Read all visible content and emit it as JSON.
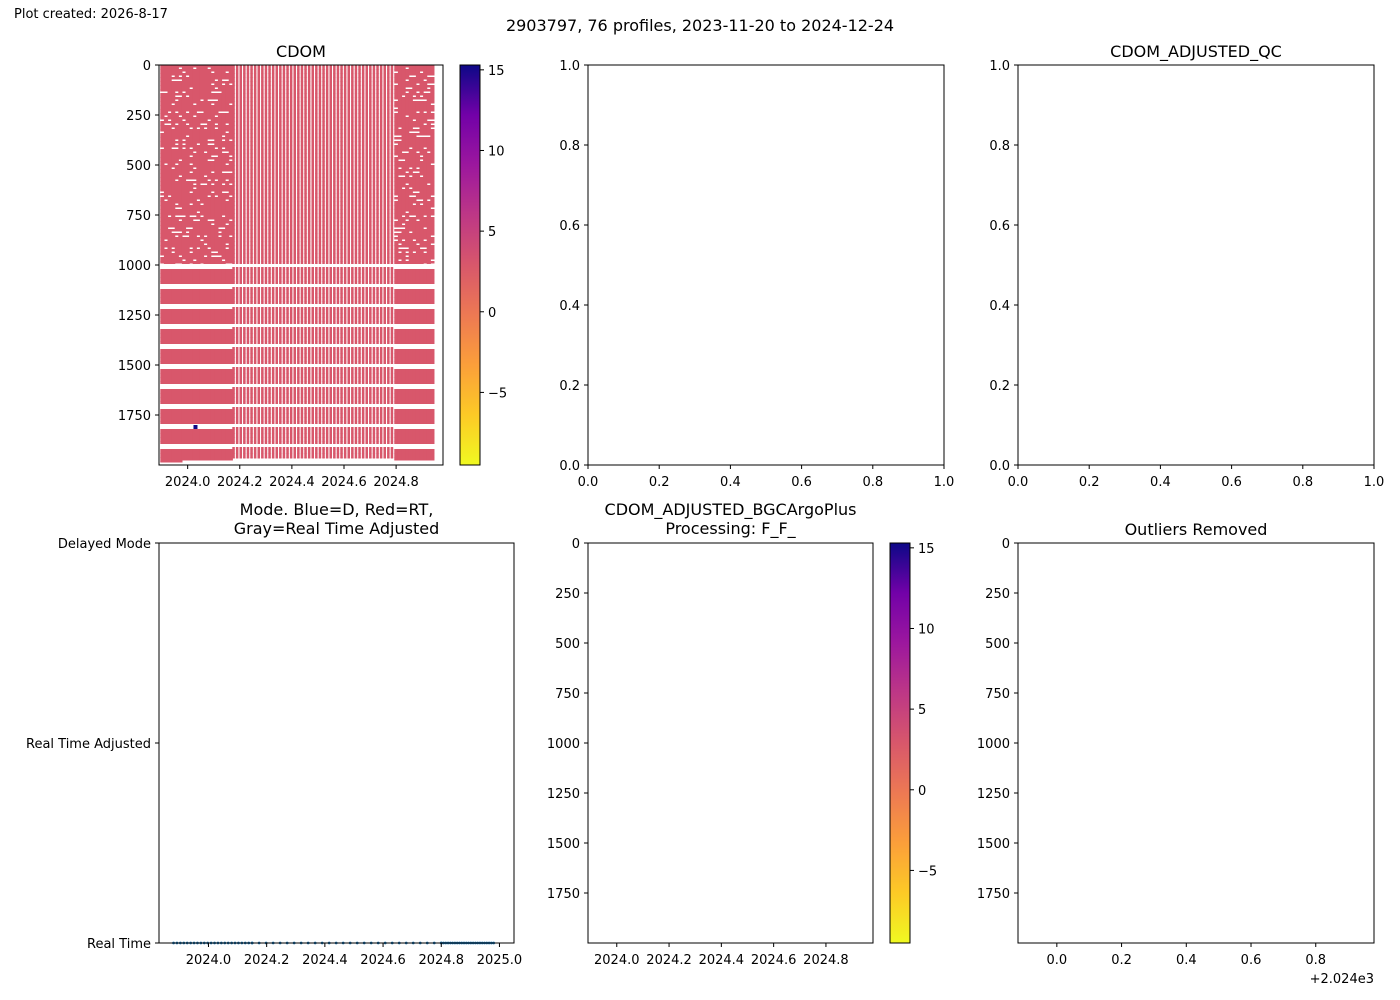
{
  "plot_created": "Plot created: 2026-8-17",
  "suptitle": "2903797, 76 profiles, 2023-11-20 to 2024-12-24",
  "chart_data": [
    {
      "id": "cdom",
      "type": "heatmap",
      "title": "CDOM",
      "x_ticks": [
        "2024.0",
        "2024.2",
        "2024.4",
        "2024.6",
        "2024.8"
      ],
      "x_tick_values": [
        2024.0,
        2024.2,
        2024.4,
        2024.6,
        2024.8
      ],
      "xlim": [
        2023.89,
        2024.98
      ],
      "y_ticks": [
        "0",
        "250",
        "500",
        "750",
        "1000",
        "1250",
        "1500",
        "1750"
      ],
      "y_tick_values": [
        0,
        250,
        500,
        750,
        1000,
        1250,
        1500,
        1750
      ],
      "ylim": [
        2000,
        0
      ],
      "colormap": "plasma_r",
      "dominant_value": 2.5,
      "anomaly": {
        "x": 2024.03,
        "y": 1810,
        "value": 15
      },
      "profiles": 76,
      "colorbar": {
        "ticks": [
          "15",
          "10",
          "5",
          "0",
          "−5"
        ],
        "tick_values": [
          15,
          10,
          5,
          0,
          -5
        ],
        "range": [
          -9.5,
          15.3
        ]
      }
    },
    {
      "id": "empty-top-middle",
      "type": "scatter",
      "title": "",
      "x_ticks": [
        "0.0",
        "0.2",
        "0.4",
        "0.6",
        "0.8",
        "1.0"
      ],
      "x_tick_values": [
        0.0,
        0.2,
        0.4,
        0.6,
        0.8,
        1.0
      ],
      "y_ticks": [
        "0.0",
        "0.2",
        "0.4",
        "0.6",
        "0.8",
        "1.0"
      ],
      "y_tick_values": [
        0.0,
        0.2,
        0.4,
        0.6,
        0.8,
        1.0
      ],
      "xlim": [
        0,
        1
      ],
      "ylim": [
        0,
        1
      ]
    },
    {
      "id": "cdom-adjusted-qc",
      "type": "scatter",
      "title": "CDOM_ADJUSTED_QC",
      "x_ticks": [
        "0.0",
        "0.2",
        "0.4",
        "0.6",
        "0.8",
        "1.0"
      ],
      "x_tick_values": [
        0.0,
        0.2,
        0.4,
        0.6,
        0.8,
        1.0
      ],
      "y_ticks": [
        "0.0",
        "0.2",
        "0.4",
        "0.6",
        "0.8",
        "1.0"
      ],
      "y_tick_values": [
        0.0,
        0.2,
        0.4,
        0.6,
        0.8,
        1.0
      ],
      "xlim": [
        0,
        1
      ],
      "ylim": [
        0,
        1
      ]
    },
    {
      "id": "mode",
      "type": "scatter",
      "title_lines": [
        "Mode. Blue=D, Red=RT,",
        "Gray=Real Time Adjusted"
      ],
      "x_ticks": [
        "2024.0",
        "2024.2",
        "2024.4",
        "2024.6",
        "2024.8",
        "2025.0"
      ],
      "x_tick_values": [
        2024.0,
        2024.2,
        2024.4,
        2024.6,
        2024.8,
        2025.0
      ],
      "xlim": [
        2023.83,
        2025.05
      ],
      "y_ticks": [
        "Delayed Mode",
        "Real Time Adjusted",
        "Real Time"
      ],
      "y_tick_values": [
        2,
        1,
        0
      ],
      "ylim": [
        0,
        2
      ],
      "point_color": "#1f77b4",
      "points_y": 0,
      "points_x_range": [
        2023.88,
        2024.98
      ],
      "point_count": 76
    },
    {
      "id": "cdom-adjusted-bgc",
      "type": "heatmap",
      "title_lines": [
        "CDOM_ADJUSTED_BGCArgoPlus",
        "Processing: F_F_"
      ],
      "x_ticks": [
        "2024.0",
        "2024.2",
        "2024.4",
        "2024.6",
        "2024.8"
      ],
      "x_tick_values": [
        2024.0,
        2024.2,
        2024.4,
        2024.6,
        2024.8
      ],
      "xlim": [
        2023.89,
        2024.98
      ],
      "y_ticks": [
        "0",
        "250",
        "500",
        "750",
        "1000",
        "1250",
        "1500",
        "1750"
      ],
      "y_tick_values": [
        0,
        250,
        500,
        750,
        1000,
        1250,
        1500,
        1750
      ],
      "ylim": [
        2000,
        0
      ],
      "colormap": "plasma_r",
      "colorbar": {
        "ticks": [
          "15",
          "10",
          "5",
          "0",
          "−5"
        ],
        "tick_values": [
          15,
          10,
          5,
          0,
          -5
        ],
        "range": [
          -9.5,
          15.3
        ]
      }
    },
    {
      "id": "outliers",
      "type": "scatter",
      "title": "Outliers Removed",
      "x_ticks": [
        "0.0",
        "0.2",
        "0.4",
        "0.6",
        "0.8"
      ],
      "x_tick_values": [
        0.0,
        0.2,
        0.4,
        0.6,
        0.8
      ],
      "xlim": [
        -0.12,
        0.98
      ],
      "x_offset_label": "+2.024e3",
      "y_ticks": [
        "0",
        "250",
        "500",
        "750",
        "1000",
        "1250",
        "1500",
        "1750"
      ],
      "y_tick_values": [
        0,
        250,
        500,
        750,
        1000,
        1250,
        1500,
        1750
      ],
      "ylim": [
        2000,
        0
      ]
    }
  ]
}
